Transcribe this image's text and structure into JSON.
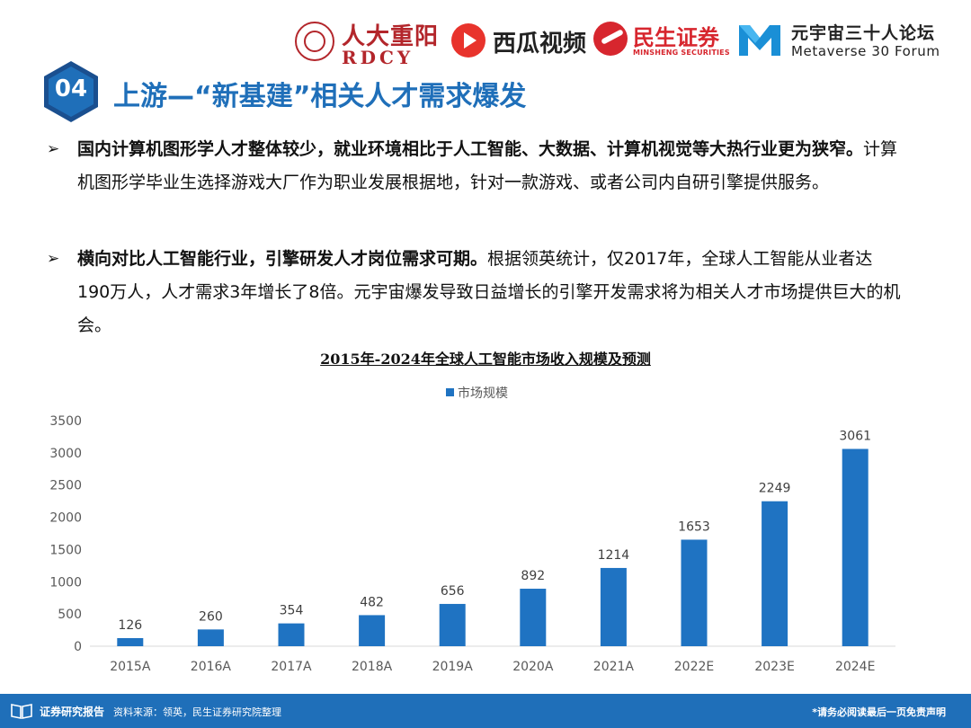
{
  "header": {
    "logos": [
      {
        "name": "rdcy",
        "text_cn": "人大重阳",
        "text_en": "RDCY"
      },
      {
        "name": "xigua",
        "text": "西瓜视频"
      },
      {
        "name": "minsheng",
        "text_cn": "民生证券",
        "text_en": "MINSHENG SECURITIES"
      },
      {
        "name": "metaverse-forum",
        "text_cn": "元宇宙三十人论坛",
        "text_en": "Metaverse 30 Forum"
      }
    ]
  },
  "section": {
    "number": "04",
    "title": "上游—“新基建”相关人才需求爆发"
  },
  "bullets": [
    {
      "marker": "➢",
      "bold": "国内计算机图形学人才整体较少，就业环境相比于人工智能、大数据、计算机视觉等大热行业更为狭窄。",
      "text": "计算机图形学毕业生选择游戏大厂作为职业发展根据地，针对一款游戏、或者公司内自研引擎提供服务。"
    },
    {
      "marker": "➢",
      "bold": "横向对比人工智能行业，引擎研发人才岗位需求可期。",
      "text": "根据领英统计，仅2017年，全球人工智能从业者达190万人，人才需求3年增长了8倍。元宇宙爆发导致日益增长的引擎开发需求将为相关人才市场提供巨大的机会。"
    }
  ],
  "chart_data": {
    "type": "bar",
    "title": "2015年-2024年全球人工智能市场收入规模及预测",
    "categories": [
      "2015A",
      "2016A",
      "2017A",
      "2018A",
      "2019A",
      "2020A",
      "2021A",
      "2022E",
      "2023E",
      "2024E"
    ],
    "series": [
      {
        "name": "市场规模",
        "values": [
          126,
          260,
          354,
          482,
          656,
          892,
          1214,
          1653,
          2249,
          3061
        ],
        "color": "#1f73c2"
      }
    ],
    "yticks": [
      0,
      500,
      1000,
      1500,
      2000,
      2500,
      3000,
      3500
    ],
    "ylim": [
      0,
      3500
    ],
    "xlabel": "",
    "ylabel": "",
    "legend": "top-left",
    "grid": false,
    "data_labels": true
  },
  "footer": {
    "report_label": "证券研究报告",
    "source": "资料来源：领英，民生证券研究院整理",
    "disclaimer": "*请务必阅读最后一页免责声明"
  },
  "colors": {
    "primary": "#1f6fb9",
    "bar": "#1f73c2",
    "rdcy_red": "#b3262b",
    "minsheng_red": "#d7262e"
  }
}
